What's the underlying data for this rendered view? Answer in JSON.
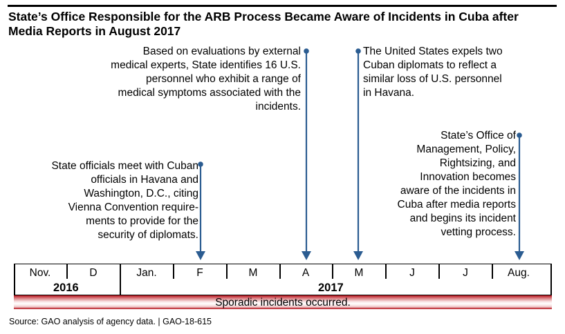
{
  "title": "State’s Office Responsible for the ARB Process Became Aware of Incidents in Cuba after Media Reports in August 2017",
  "notes": {
    "feb_2017": "State officials meet with Cuban officials in Havana and Washington, D.C., citing Vienna Convention require- ments to provide for the security of diplomats.",
    "apr_2017": "Based on evaluations by external medical experts, State identifies 16 U.S. personnel who exhibit a range of medical symptoms associated with the incidents.",
    "may_2017": "The United States expels two Cuban diplomats to reflect a similar loss of U.S. personnel in Havana.",
    "aug_2017": "State’s Office of Management, Policy, Rightsizing, and Innovation becomes aware of the incidents in Cuba after media reports and begins its incident vetting process."
  },
  "timeline": {
    "months": [
      "Nov.",
      "D",
      "Jan.",
      "F",
      "M",
      "A",
      "M",
      "J",
      "J",
      "Aug."
    ],
    "years": [
      "2016",
      "2017"
    ]
  },
  "sporadic_label": "Sporadic incidents occurred.",
  "footer": "Source: GAO analysis of agency data.   |  GAO-18-615",
  "colors": {
    "arrow": "#2b5c91",
    "band": "#b5121b"
  }
}
